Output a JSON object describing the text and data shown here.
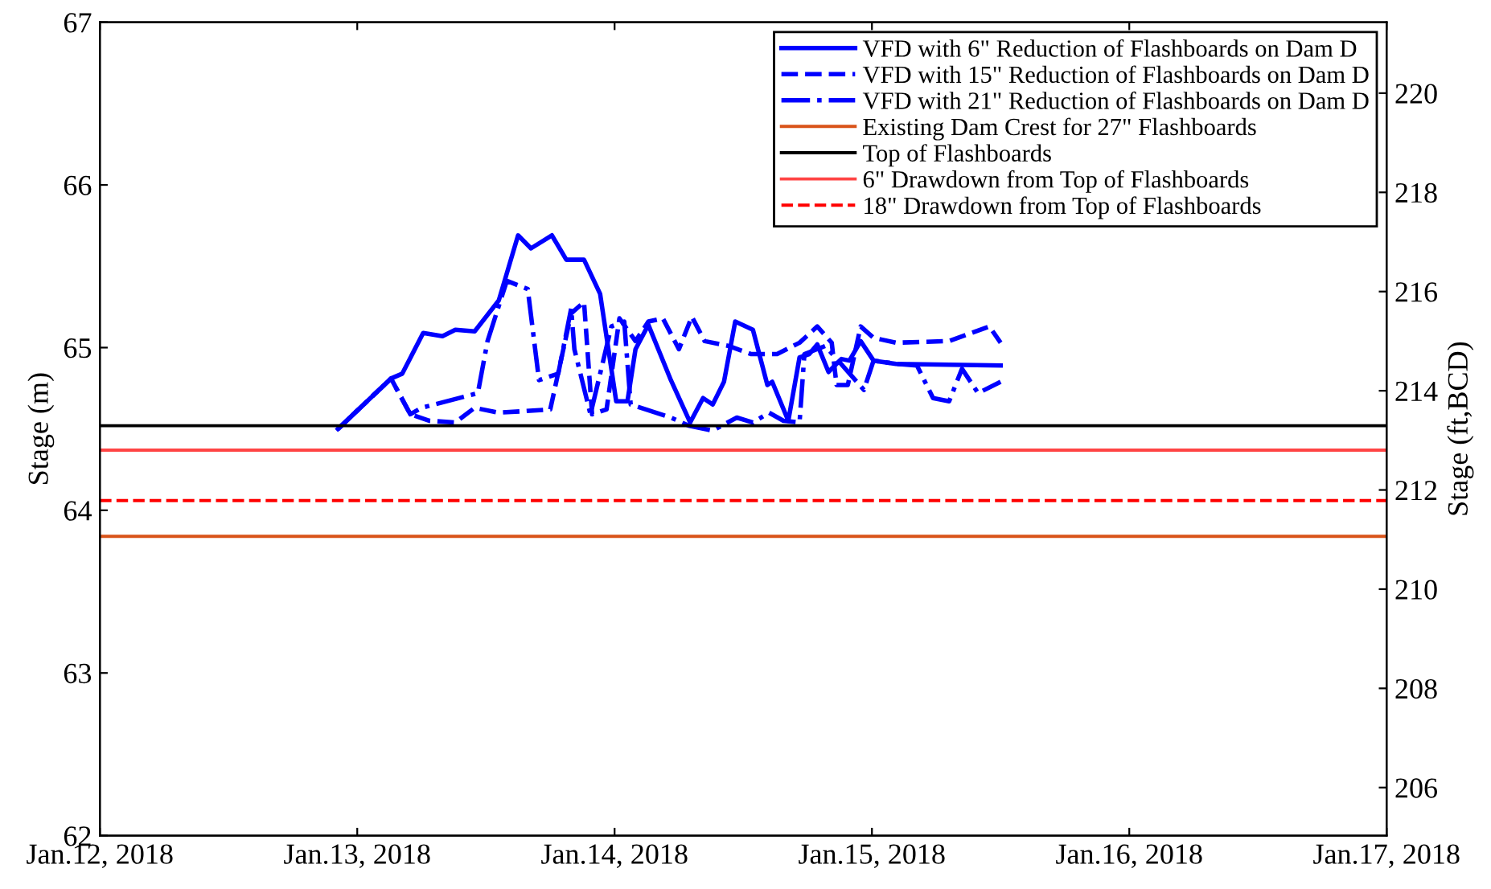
{
  "chart_data": {
    "type": "line",
    "xlabel": null,
    "ylabel": "Stage (m)",
    "y2label": "Stage (ft,BCD)",
    "xlim": [
      "2018-01-12",
      "2018-01-17"
    ],
    "xticks": [
      {
        "value": "2018-01-12",
        "label": "Jan.12, 2018"
      },
      {
        "value": "2018-01-13",
        "label": "Jan.13, 2018"
      },
      {
        "value": "2018-01-14",
        "label": "Jan.14, 2018"
      },
      {
        "value": "2018-01-15",
        "label": "Jan.15, 2018"
      },
      {
        "value": "2018-01-16",
        "label": "Jan.16, 2018"
      },
      {
        "value": "2018-01-17",
        "label": "Jan.17, 2018"
      }
    ],
    "ylim": [
      62,
      67
    ],
    "yticks": [
      62,
      63,
      64,
      65,
      66,
      67
    ],
    "y2lim": [
      205.03,
      221.43
    ],
    "y2ticks": [
      206,
      208,
      210,
      212,
      214,
      216,
      218,
      220
    ],
    "grid": false,
    "legend": "top right",
    "marker": "none",
    "series": [
      {
        "name": "VFD with 6\" Reduction of Flashboards on Dam D",
        "color": "#0000ff",
        "line_style": "solid",
        "x": [
          "2018-01-12T22:12",
          "2018-01-13T03:09",
          "2018-01-13T04:12",
          "2018-01-13T06:09",
          "2018-01-13T07:57",
          "2018-01-13T09:09",
          "2018-01-13T10:57",
          "2018-01-13T13:12",
          "2018-01-13T15:00",
          "2018-01-13T16:12",
          "2018-01-13T18:09",
          "2018-01-13T19:30",
          "2018-01-13T21:09",
          "2018-01-13T22:39",
          "2018-01-14T00:09",
          "2018-01-14T01:12",
          "2018-01-14T01:57",
          "2018-01-14T03:09",
          "2018-01-14T05:15",
          "2018-01-14T07:03",
          "2018-01-14T08:15",
          "2018-01-14T09:09",
          "2018-01-14T10:12",
          "2018-01-14T11:15",
          "2018-01-14T12:54",
          "2018-01-14T14:15",
          "2018-01-14T14:42",
          "2018-01-14T16:12",
          "2018-01-14T17:15",
          "2018-01-14T18:09",
          "2018-01-14T18:54",
          "2018-01-14T19:57",
          "2018-01-14T21:09",
          "2018-01-14T21:54",
          "2018-01-14T22:57",
          "2018-01-15T00:09",
          "2018-01-15T02:15",
          "2018-01-15T12:00"
        ],
        "values": [
          64.5,
          64.81,
          64.84,
          65.09,
          65.07,
          65.11,
          65.1,
          65.29,
          65.69,
          65.61,
          65.69,
          65.54,
          65.54,
          65.33,
          64.67,
          64.67,
          64.99,
          65.14,
          64.8,
          64.54,
          64.69,
          64.65,
          64.79,
          65.16,
          65.11,
          64.77,
          64.79,
          64.55,
          64.94,
          64.96,
          65.02,
          64.85,
          64.93,
          64.92,
          65.04,
          64.92,
          64.9,
          64.89
        ]
      },
      {
        "name": "VFD with 15\" Reduction of Flashboards on Dam D",
        "color": "#0000ff",
        "line_style": "dashed",
        "x": [
          "2018-01-12T22:12",
          "2018-01-13T03:09",
          "2018-01-13T04:57",
          "2018-01-13T06:45",
          "2018-01-13T09:09",
          "2018-01-13T10:57",
          "2018-01-13T13:12",
          "2018-01-13T15:45",
          "2018-01-13T18:00",
          "2018-01-13T19:57",
          "2018-01-13T21:09",
          "2018-01-13T21:54",
          "2018-01-13T23:15",
          "2018-01-14T00:27",
          "2018-01-14T01:57",
          "2018-01-14T03:09",
          "2018-01-14T04:30",
          "2018-01-14T06:00",
          "2018-01-14T07:12",
          "2018-01-14T08:24",
          "2018-01-14T10:39",
          "2018-01-14T12:45",
          "2018-01-14T15:09",
          "2018-01-14T17:15",
          "2018-01-14T18:54",
          "2018-01-14T20:15",
          "2018-01-14T20:42",
          "2018-01-14T21:45",
          "2018-01-14T22:57",
          "2018-01-15T00:09",
          "2018-01-15T02:15",
          "2018-01-15T07:12",
          "2018-01-15T10:57",
          "2018-01-15T12:00"
        ],
        "values": [
          64.5,
          64.81,
          64.59,
          64.55,
          64.54,
          64.63,
          64.6,
          64.61,
          64.62,
          65.21,
          65.28,
          64.59,
          64.62,
          65.18,
          65.04,
          65.16,
          65.18,
          64.99,
          65.19,
          65.04,
          65.01,
          64.96,
          64.96,
          65.03,
          65.13,
          65.03,
          64.77,
          64.77,
          65.13,
          65.06,
          65.03,
          65.04,
          65.13,
          65.03
        ]
      },
      {
        "name": "VFD with 21\" Reduction of Flashboards on Dam D",
        "color": "#0000ff",
        "line_style": "dashdot",
        "x": [
          "2018-01-12T22:12",
          "2018-01-13T03:09",
          "2018-01-13T04:57",
          "2018-01-13T06:00",
          "2018-01-13T11:15",
          "2018-01-13T12:09",
          "2018-01-13T13:57",
          "2018-01-13T15:54",
          "2018-01-13T16:57",
          "2018-01-13T18:45",
          "2018-01-13T19:57",
          "2018-01-13T20:15",
          "2018-01-13T21:45",
          "2018-01-13T23:42",
          "2018-01-14T00:54",
          "2018-01-14T01:30",
          "2018-01-14T05:15",
          "2018-01-14T06:54",
          "2018-01-14T09:09",
          "2018-01-14T11:24",
          "2018-01-14T12:54",
          "2018-01-14T14:24",
          "2018-01-14T15:45",
          "2018-01-14T17:15",
          "2018-01-14T17:42",
          "2018-01-14T19:39",
          "2018-01-14T23:15",
          "2018-01-15T00:09",
          "2018-01-15T02:15",
          "2018-01-15T04:12",
          "2018-01-15T05:42",
          "2018-01-15T07:12",
          "2018-01-15T08:24",
          "2018-01-15T09:54",
          "2018-01-15T12:00"
        ],
        "values": [
          64.5,
          64.81,
          64.59,
          64.63,
          64.72,
          65.04,
          65.41,
          65.36,
          64.8,
          64.84,
          65.24,
          64.99,
          64.59,
          65.13,
          65.16,
          64.65,
          64.57,
          64.52,
          64.49,
          64.57,
          64.54,
          64.6,
          64.55,
          64.54,
          64.96,
          65.01,
          64.74,
          64.92,
          64.9,
          64.89,
          64.69,
          64.67,
          64.87,
          64.72,
          64.79
        ]
      }
    ],
    "ref_lines": [
      {
        "axis": "y",
        "value": 63.84,
        "label": "Existing Dam Crest for 27\" Flashboards",
        "color": "#d95319",
        "line_style": "solid"
      },
      {
        "axis": "y",
        "value": 64.52,
        "label": "Top of Flashboards",
        "color": "#000000",
        "line_style": "solid"
      },
      {
        "axis": "y",
        "value": 64.37,
        "label": "6\" Drawdown from Top of Flashboards",
        "color": "#ff4444",
        "line_style": "solid"
      },
      {
        "axis": "y",
        "value": 64.06,
        "label": "18\" Drawdown from Top of Flashboards",
        "color": "#ff0000",
        "line_style": "dashed"
      }
    ]
  }
}
